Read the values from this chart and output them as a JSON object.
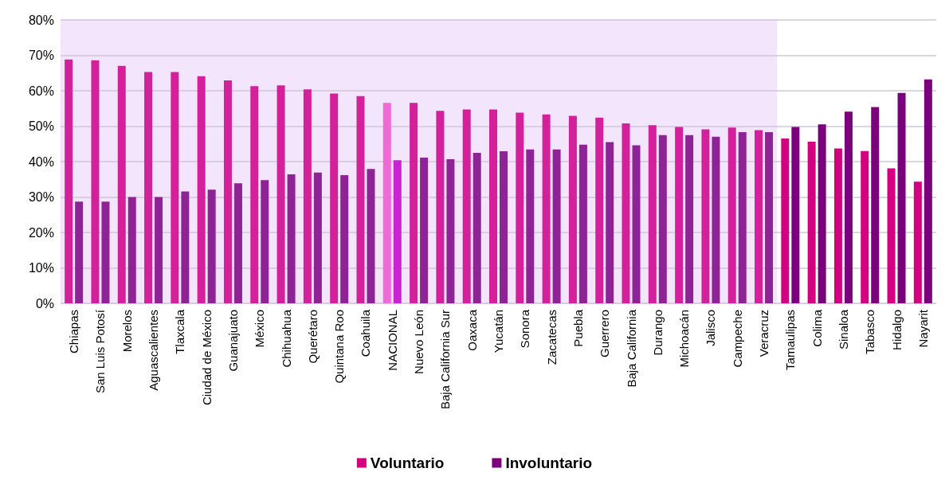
{
  "chart_data": {
    "type": "bar",
    "categories": [
      "Chiapas",
      "San Luis Potosí",
      "Morelos",
      "Aguascalientes",
      "Tlaxcala",
      "Ciudad de México",
      "Guanajuato",
      "México",
      "Chihuahua",
      "Querétaro",
      "Quintana Roo",
      "Coahuila",
      "NACIONAL",
      "Nuevo León",
      "Baja California Sur",
      "Oaxaca",
      "Yucatán",
      "Sonora",
      "Zacatecas",
      "Puebla",
      "Guerrero",
      "Baja California",
      "Durango",
      "Michoacán",
      "Jalisco",
      "Campeche",
      "Veracruz",
      "Tamaulipas",
      "Colima",
      "Sinaloa",
      "Tabasco",
      "Hidalgo",
      "Nayarit"
    ],
    "series": [
      {
        "name": "Voluntario",
        "color": "#d5007f",
        "values": [
          68.8,
          68.6,
          67,
          65.3,
          65.3,
          64.1,
          62.9,
          61.3,
          61.5,
          60.4,
          59.2,
          58.5,
          56.6,
          56.6,
          54.3,
          54.7,
          54.7,
          53.8,
          53.3,
          52.9,
          52.4,
          50.8,
          50.3,
          49.8,
          49.1,
          49.6,
          48.9,
          46.5,
          45.6,
          43.7,
          43,
          38.1,
          34.3
        ],
        "colors": [
          "#d4209a",
          "#d4209a",
          "#d4209a",
          "#d4209a",
          "#d4209a",
          "#d4209a",
          "#d4209a",
          "#d4209a",
          "#d4209a",
          "#d4209a",
          "#d4209a",
          "#d4209a",
          "#f06ad6",
          "#d4209a",
          "#d4209a",
          "#d4209a",
          "#d4209a",
          "#d4209a",
          "#d4209a",
          "#d4209a",
          "#d4209a",
          "#d4209a",
          "#d4209a",
          "#d4209a",
          "#d4209a",
          "#d4209a",
          "#d4209a",
          "#d5007f",
          "#d5007f",
          "#d5007f",
          "#d5007f",
          "#d5007f",
          "#d5007f"
        ]
      },
      {
        "name": "Involuntario",
        "color": "#7b007b",
        "values": [
          28.7,
          28.7,
          30,
          30,
          31.6,
          32.1,
          33.9,
          34.8,
          36.4,
          36.9,
          36.2,
          37.9,
          40.4,
          41.1,
          40.7,
          42.5,
          42.9,
          43.4,
          43.4,
          44.8,
          45.5,
          44.6,
          47.5,
          47.5,
          47,
          48.3,
          48.3,
          49.8,
          50.5,
          54.1,
          55.4,
          59.4,
          63.2
        ],
        "colors": [
          "#8e2396",
          "#8e2396",
          "#8e2396",
          "#8e2396",
          "#8e2396",
          "#8e2396",
          "#8e2396",
          "#8e2396",
          "#8e2396",
          "#8e2396",
          "#8e2396",
          "#8e2396",
          "#c824d0",
          "#8e2396",
          "#8e2396",
          "#8e2396",
          "#8e2396",
          "#8e2396",
          "#8e2396",
          "#8e2396",
          "#8e2396",
          "#8e2396",
          "#8e2396",
          "#8e2396",
          "#8e2396",
          "#8e2396",
          "#8e2396",
          "#7b007b",
          "#7b007b",
          "#7b007b",
          "#7b007b",
          "#7b007b",
          "#7b007b"
        ]
      }
    ],
    "ylim": [
      0,
      80
    ],
    "yticks": [
      {
        "value": 0,
        "label": "0%"
      },
      {
        "value": 10,
        "label": "10%"
      },
      {
        "value": 20,
        "label": "20%"
      },
      {
        "value": 30,
        "label": "30%"
      },
      {
        "value": 40,
        "label": "40%"
      },
      {
        "value": 50,
        "label": "50%"
      },
      {
        "value": 60,
        "label": "60%"
      },
      {
        "value": 70,
        "label": "70%"
      },
      {
        "value": 80,
        "label": "80%"
      }
    ],
    "grid": "y",
    "legend": "bottom",
    "bands": [
      {
        "axis": "x",
        "from": "Chiapas",
        "to": "Veracruz",
        "color": "#f3e6fc"
      }
    ]
  }
}
